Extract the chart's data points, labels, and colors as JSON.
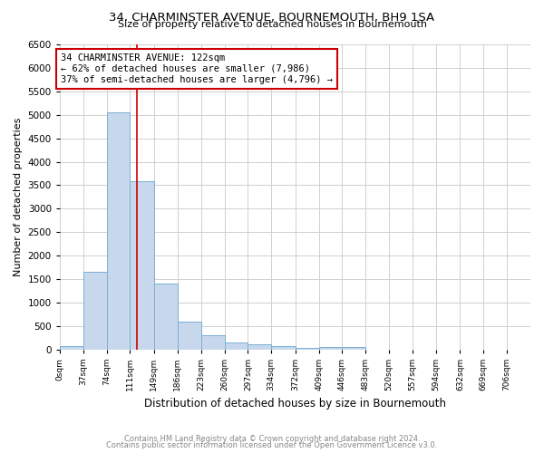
{
  "title": "34, CHARMINSTER AVENUE, BOURNEMOUTH, BH9 1SA",
  "subtitle": "Size of property relative to detached houses in Bournemouth",
  "xlabel": "Distribution of detached houses by size in Bournemouth",
  "ylabel": "Number of detached properties",
  "bin_edges": [
    0,
    37,
    74,
    111,
    149,
    186,
    223,
    260,
    297,
    334,
    372,
    409,
    446,
    483,
    520,
    557,
    594,
    632,
    669,
    706,
    743
  ],
  "bar_heights": [
    75,
    1650,
    5050,
    3580,
    1400,
    600,
    300,
    155,
    115,
    80,
    40,
    50,
    50,
    0,
    0,
    0,
    0,
    0,
    0,
    0
  ],
  "bar_color": "#c8d8ec",
  "bar_edge_color": "#7aafd4",
  "property_line_x": 122,
  "property_line_color": "#cc0000",
  "ylim": [
    0,
    6500
  ],
  "yticks": [
    0,
    500,
    1000,
    1500,
    2000,
    2500,
    3000,
    3500,
    4000,
    4500,
    5000,
    5500,
    6000,
    6500
  ],
  "annotation_line1": "34 CHARMINSTER AVENUE: 122sqm",
  "annotation_line2": "← 62% of detached houses are smaller (7,986)",
  "annotation_line3": "37% of semi-detached houses are larger (4,796) →",
  "annotation_box_color": "#cc0000",
  "footer_line1": "Contains HM Land Registry data © Crown copyright and database right 2024.",
  "footer_line2": "Contains public sector information licensed under the Open Government Licence v3.0.",
  "background_color": "#ffffff",
  "grid_color": "#d0d0d0",
  "title_fontsize": 9.5,
  "subtitle_fontsize": 8.5
}
